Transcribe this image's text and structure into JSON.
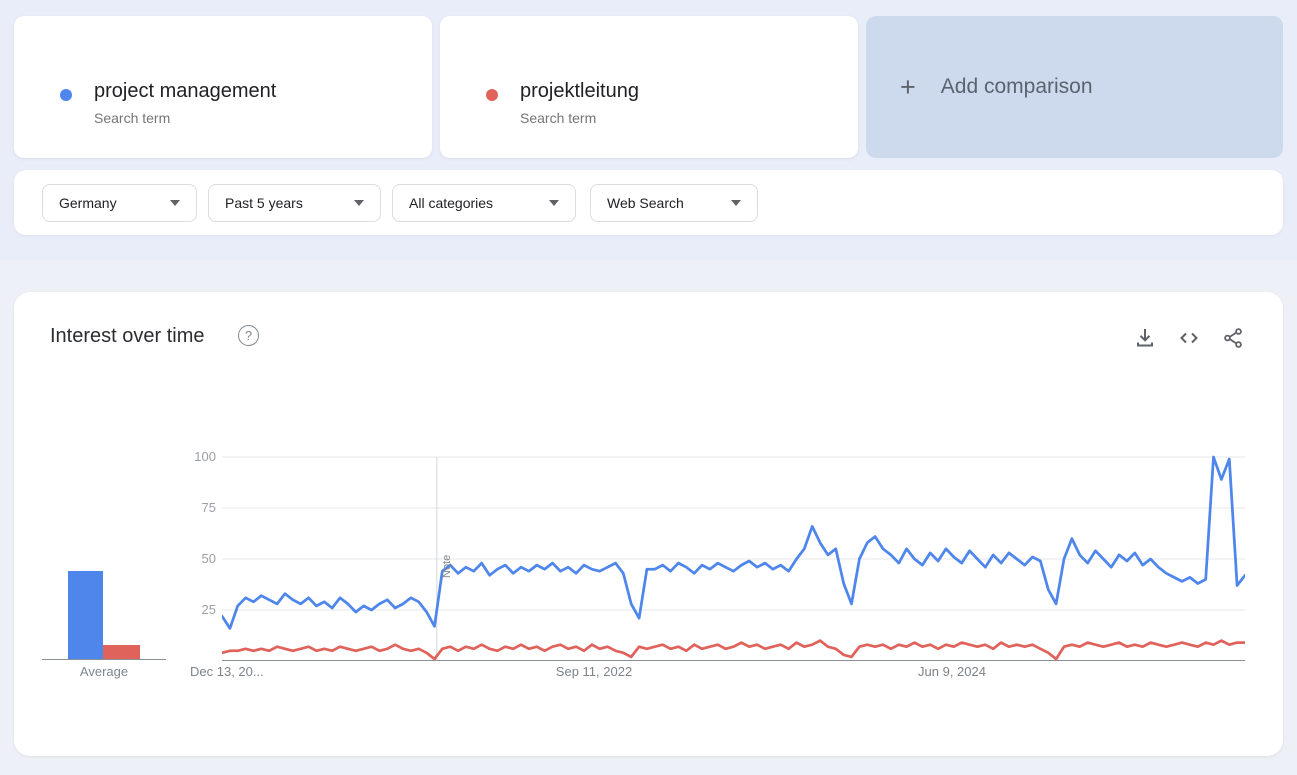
{
  "terms": [
    {
      "label": "project management",
      "sublabel": "Search term",
      "color": "#4e86ec"
    },
    {
      "label": "projektleitung",
      "sublabel": "Search term",
      "color": "#e0635b"
    }
  ],
  "add_comparison": {
    "plus": "+",
    "label": "Add comparison"
  },
  "filters": {
    "geo": "Germany",
    "time": "Past 5 years",
    "category": "All categories",
    "property": "Web Search"
  },
  "chart_header": {
    "title": "Interest over time",
    "help": "?"
  },
  "chart_data": {
    "type": "line",
    "title": "Interest over time",
    "ylim": [
      0,
      100
    ],
    "yticks": [
      25,
      50,
      75,
      100
    ],
    "xticks": [
      "Dec 13, 20...",
      "Sep 11, 2022",
      "Jun 9, 2024"
    ],
    "grid": true,
    "legend_position": "none",
    "note_marker": {
      "label": "Note",
      "x_fraction": 0.21
    },
    "average": {
      "label": "Average",
      "values": [
        43,
        7
      ]
    },
    "series": [
      {
        "name": "project management",
        "color": "#4e86ec",
        "values": [
          22,
          16,
          27,
          31,
          29,
          32,
          30,
          28,
          33,
          30,
          28,
          31,
          27,
          29,
          26,
          31,
          28,
          24,
          27,
          25,
          28,
          30,
          26,
          28,
          31,
          29,
          24,
          17,
          44,
          47,
          43,
          46,
          44,
          48,
          42,
          45,
          47,
          43,
          46,
          44,
          47,
          45,
          48,
          44,
          46,
          43,
          47,
          45,
          44,
          46,
          48,
          43,
          28,
          21,
          45,
          45,
          47,
          44,
          48,
          46,
          43,
          47,
          45,
          48,
          46,
          44,
          47,
          49,
          46,
          48,
          45,
          47,
          44,
          50,
          55,
          66,
          58,
          52,
          55,
          38,
          28,
          50,
          58,
          61,
          55,
          52,
          48,
          55,
          50,
          47,
          53,
          49,
          55,
          51,
          48,
          54,
          50,
          46,
          52,
          48,
          53,
          50,
          47,
          51,
          49,
          35,
          28,
          50,
          60,
          52,
          48,
          54,
          50,
          46,
          52,
          49,
          53,
          47,
          50,
          46,
          43,
          41,
          39,
          41,
          38,
          40,
          100,
          89,
          99,
          37,
          42
        ]
      },
      {
        "name": "projektleitung",
        "color": "#e0635b",
        "values": [
          4,
          5,
          5,
          6,
          5,
          6,
          5,
          7,
          6,
          5,
          6,
          7,
          5,
          6,
          5,
          7,
          6,
          5,
          6,
          7,
          5,
          6,
          8,
          6,
          5,
          6,
          4,
          1,
          6,
          7,
          5,
          7,
          6,
          8,
          6,
          5,
          7,
          6,
          8,
          6,
          7,
          5,
          7,
          8,
          6,
          7,
          5,
          8,
          6,
          7,
          5,
          4,
          2,
          7,
          6,
          7,
          8,
          6,
          7,
          5,
          8,
          6,
          7,
          8,
          6,
          7,
          9,
          7,
          8,
          6,
          7,
          8,
          6,
          9,
          7,
          8,
          10,
          7,
          6,
          3,
          2,
          7,
          8,
          7,
          8,
          6,
          8,
          7,
          9,
          7,
          8,
          6,
          8,
          7,
          9,
          8,
          7,
          8,
          6,
          9,
          7,
          8,
          7,
          8,
          6,
          4,
          1,
          7,
          8,
          7,
          9,
          8,
          7,
          8,
          9,
          7,
          8,
          7,
          9,
          8,
          7,
          8,
          9,
          8,
          7,
          9,
          8,
          10,
          8,
          9,
          9
        ]
      }
    ]
  }
}
